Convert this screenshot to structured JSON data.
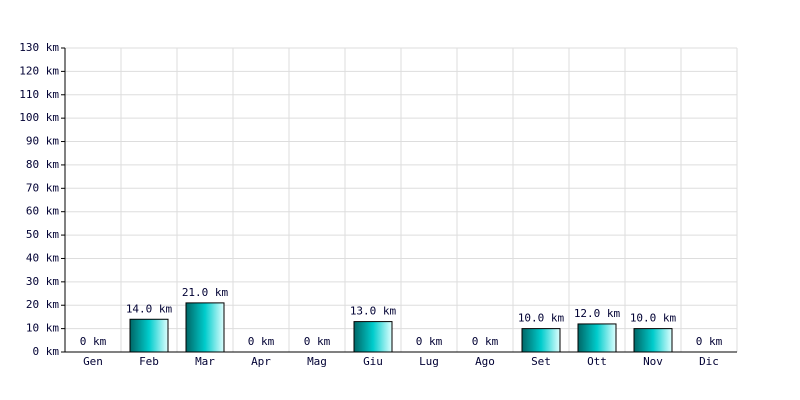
{
  "chart_data": {
    "type": "bar",
    "categories": [
      "Gen",
      "Feb",
      "Mar",
      "Apr",
      "Mag",
      "Giu",
      "Lug",
      "Ago",
      "Set",
      "Ott",
      "Nov",
      "Dic"
    ],
    "values": [
      0,
      14,
      21,
      0,
      0,
      13,
      0,
      0,
      10,
      12,
      10,
      0
    ],
    "value_labels": [
      "0 km",
      "14.0 km",
      "21.0 km",
      "0 km",
      "0 km",
      "13.0 km",
      "0 km",
      "0 km",
      "10.0 km",
      "12.0 km",
      "10.0 km",
      "0 km"
    ],
    "color": "#00cccc",
    "ylim": [
      0,
      130
    ],
    "yticks": [
      {
        "value": 0,
        "label": "0 km"
      },
      {
        "value": 10,
        "label": "10 km"
      },
      {
        "value": 20,
        "label": "20 km"
      },
      {
        "value": 30,
        "label": "30 km"
      },
      {
        "value": 40,
        "label": "40 km"
      },
      {
        "value": 50,
        "label": "50 km"
      },
      {
        "value": 60,
        "label": "60 km"
      },
      {
        "value": 70,
        "label": "70 km"
      },
      {
        "value": 80,
        "label": "80 km"
      },
      {
        "value": 90,
        "label": "90 km"
      },
      {
        "value": 100,
        "label": "100 km"
      },
      {
        "value": 110,
        "label": "110 km"
      },
      {
        "value": 120,
        "label": "120 km"
      },
      {
        "value": 130,
        "label": "130 km"
      }
    ],
    "grid": true
  }
}
